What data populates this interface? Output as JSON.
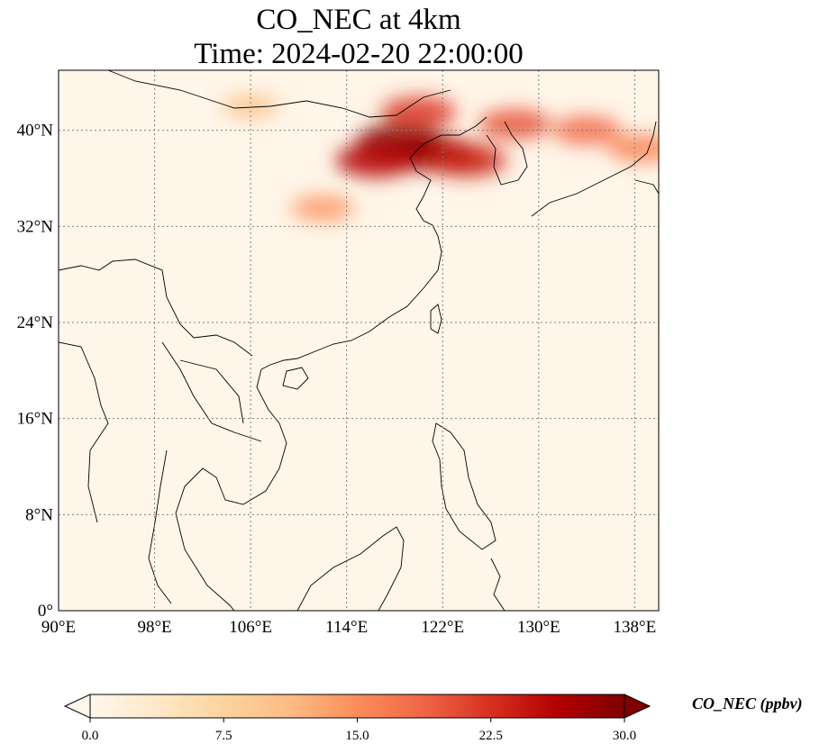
{
  "title": {
    "line1": "CO_NEC at 4km",
    "line2": "Time: 2024-02-20 22:00:00"
  },
  "map": {
    "extent": {
      "lon": [
        90,
        140
      ],
      "lat": [
        0,
        45
      ]
    },
    "lon_ticks": [
      {
        "value": 90,
        "label": "90°E"
      },
      {
        "value": 98,
        "label": "98°E"
      },
      {
        "value": 106,
        "label": "106°E"
      },
      {
        "value": 114,
        "label": "114°E"
      },
      {
        "value": 122,
        "label": "122°E"
      },
      {
        "value": 130,
        "label": "130°E"
      },
      {
        "value": 138,
        "label": "138°E"
      }
    ],
    "lat_ticks": [
      {
        "value": 0,
        "label": "0°"
      },
      {
        "value": 8,
        "label": "8°N"
      },
      {
        "value": 16,
        "label": "16°N"
      },
      {
        "value": 24,
        "label": "24°N"
      },
      {
        "value": 32,
        "label": "32°N"
      },
      {
        "value": 40,
        "label": "40°N"
      }
    ],
    "gridlines": true,
    "colormap": "OrRd",
    "background_color": "#fff5e8",
    "plumes": [
      {
        "lon": 118.5,
        "lat": 39.0,
        "value": 30
      },
      {
        "lon": 121.5,
        "lat": 38.0,
        "value": 28
      },
      {
        "lon": 124.0,
        "lat": 37.5,
        "value": 24
      },
      {
        "lon": 116.5,
        "lat": 37.5,
        "value": 26
      },
      {
        "lon": 128.0,
        "lat": 40.5,
        "value": 20
      },
      {
        "lon": 134.0,
        "lat": 40.0,
        "value": 18
      },
      {
        "lon": 138.5,
        "lat": 38.5,
        "value": 16
      },
      {
        "lon": 112.0,
        "lat": 33.5,
        "value": 14
      },
      {
        "lon": 106.0,
        "lat": 42.0,
        "value": 10
      },
      {
        "lon": 120.0,
        "lat": 41.5,
        "value": 22
      }
    ]
  },
  "colorbar": {
    "vmin": 0,
    "vmax": 30,
    "ticks": [
      "0.0",
      "7.5",
      "15.0",
      "22.5",
      "30.0"
    ],
    "label": "CO_NEC (ppbv)",
    "extend": "both",
    "colors": [
      "#fff7ec",
      "#fee8c8",
      "#fdd49e",
      "#fdbb84",
      "#fc8d59",
      "#ef6548",
      "#d7301f",
      "#b30000",
      "#7f0000"
    ]
  }
}
